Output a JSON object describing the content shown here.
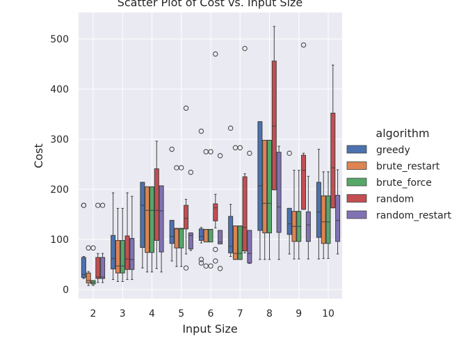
{
  "chart_data": {
    "type": "box",
    "title": "Scatter Plot of Cost vs. Input Size",
    "xlabel": "Input Size",
    "ylabel": "Cost",
    "ylim": [
      -18,
      555
    ],
    "yticks": [
      0,
      100,
      200,
      300,
      400,
      500
    ],
    "categories": [
      "2",
      "3",
      "4",
      "5",
      "6",
      "7",
      "8",
      "9",
      "10"
    ],
    "grid": true,
    "legend": {
      "title": "algorithm",
      "placement": "right"
    },
    "series": [
      {
        "name": "greedy",
        "color": "#4c72b0",
        "boxes": [
          {
            "wl": 22,
            "q1": 24,
            "med": 30,
            "q3": 64,
            "wh": 66,
            "fliers": [
              168,
              168
            ]
          },
          {
            "wl": 20,
            "q1": 41,
            "med": 62,
            "q3": 108,
            "wh": 193,
            "fliers": []
          },
          {
            "wl": 43,
            "q1": 84,
            "med": 168,
            "q3": 214,
            "wh": 214,
            "fliers": []
          },
          {
            "wl": 57,
            "q1": 92,
            "med": 106,
            "q3": 138,
            "wh": 138,
            "fliers": [
              280
            ]
          },
          {
            "wl": 93,
            "q1": 98,
            "med": 106,
            "q3": 121,
            "wh": 124,
            "fliers": [
              60,
              53,
              316
            ]
          },
          {
            "wl": 66,
            "q1": 73,
            "med": 86,
            "q3": 146,
            "wh": 170,
            "fliers": [
              322
            ]
          },
          {
            "wl": 60,
            "q1": 118,
            "med": 207,
            "q3": 335,
            "wh": 335,
            "fliers": []
          },
          {
            "wl": 71,
            "q1": 110,
            "med": 131,
            "q3": 162,
            "wh": 162,
            "fliers": [
              272
            ]
          },
          {
            "wl": 61,
            "q1": 104,
            "med": 155,
            "q3": 214,
            "wh": 280,
            "fliers": []
          }
        ]
      },
      {
        "name": "brute_restart",
        "color": "#dd8452",
        "boxes": [
          {
            "wl": 8,
            "q1": 13,
            "med": 18,
            "q3": 33,
            "wh": 36,
            "fliers": [
              83
            ]
          },
          {
            "wl": 16,
            "q1": 33,
            "med": 47,
            "q3": 98,
            "wh": 162,
            "fliers": []
          },
          {
            "wl": 35,
            "q1": 74,
            "med": 158,
            "q3": 205,
            "wh": 205,
            "fliers": []
          },
          {
            "wl": 46,
            "q1": 83,
            "med": 121,
            "q3": 122,
            "wh": 122,
            "fliers": [
              243
            ]
          },
          {
            "wl": 95,
            "q1": 95,
            "med": 120,
            "q3": 120,
            "wh": 120,
            "fliers": [
              47,
              275
            ]
          },
          {
            "wl": 60,
            "q1": 60,
            "med": 72,
            "q3": 127,
            "wh": 127,
            "fliers": [
              283
            ]
          },
          {
            "wl": 60,
            "q1": 113,
            "med": 172,
            "q3": 298,
            "wh": 298,
            "fliers": []
          },
          {
            "wl": 61,
            "q1": 96,
            "med": 126,
            "q3": 156,
            "wh": 238,
            "fliers": []
          },
          {
            "wl": 62,
            "q1": 92,
            "med": 135,
            "q3": 187,
            "wh": 235,
            "fliers": []
          }
        ]
      },
      {
        "name": "brute_force",
        "color": "#55a868",
        "boxes": [
          {
            "wl": 8,
            "q1": 11,
            "med": 14,
            "q3": 18,
            "wh": 18,
            "fliers": [
              83
            ]
          },
          {
            "wl": 16,
            "q1": 33,
            "med": 47,
            "q3": 98,
            "wh": 162,
            "fliers": []
          },
          {
            "wl": 35,
            "q1": 74,
            "med": 158,
            "q3": 205,
            "wh": 205,
            "fliers": []
          },
          {
            "wl": 46,
            "q1": 83,
            "med": 121,
            "q3": 122,
            "wh": 122,
            "fliers": [
              243
            ]
          },
          {
            "wl": 95,
            "q1": 95,
            "med": 120,
            "q3": 120,
            "wh": 120,
            "fliers": [
              47,
              275
            ]
          },
          {
            "wl": 60,
            "q1": 60,
            "med": 72,
            "q3": 127,
            "wh": 127,
            "fliers": [
              283
            ]
          },
          {
            "wl": 60,
            "q1": 113,
            "med": 172,
            "q3": 298,
            "wh": 298,
            "fliers": []
          },
          {
            "wl": 61,
            "q1": 96,
            "med": 126,
            "q3": 156,
            "wh": 238,
            "fliers": []
          },
          {
            "wl": 62,
            "q1": 92,
            "med": 135,
            "q3": 187,
            "wh": 235,
            "fliers": []
          }
        ]
      },
      {
        "name": "random",
        "color": "#c44e52",
        "boxes": [
          {
            "wl": 14,
            "q1": 22,
            "med": 25,
            "q3": 64,
            "wh": 72,
            "fliers": [
              168
            ]
          },
          {
            "wl": 20,
            "q1": 40,
            "med": 61,
            "q3": 107,
            "wh": 193,
            "fliers": []
          },
          {
            "wl": 42,
            "q1": 98,
            "med": 158,
            "q3": 241,
            "wh": 296,
            "fliers": []
          },
          {
            "wl": 71,
            "q1": 121,
            "med": 142,
            "q3": 168,
            "wh": 180,
            "fliers": [
              43,
              362
            ]
          },
          {
            "wl": 123,
            "q1": 137,
            "med": 163,
            "q3": 171,
            "wh": 190,
            "fliers": [
              80,
              57,
              470
            ]
          },
          {
            "wl": 73,
            "q1": 77,
            "med": 124,
            "q3": 225,
            "wh": 231,
            "fliers": [
              481
            ]
          },
          {
            "wl": 199,
            "q1": 199,
            "med": 326,
            "q3": 456,
            "wh": 525,
            "fliers": []
          },
          {
            "wl": 160,
            "q1": 160,
            "med": 238,
            "q3": 268,
            "wh": 272,
            "fliers": [
              488
            ]
          },
          {
            "wl": 163,
            "q1": 163,
            "med": 243,
            "q3": 352,
            "wh": 448,
            "fliers": []
          }
        ]
      },
      {
        "name": "random_restart",
        "color": "#8172b3",
        "boxes": [
          {
            "wl": 14,
            "q1": 22,
            "med": 25,
            "q3": 64,
            "wh": 72,
            "fliers": [
              168
            ]
          },
          {
            "wl": 20,
            "q1": 40,
            "med": 60,
            "q3": 102,
            "wh": 186,
            "fliers": []
          },
          {
            "wl": 35,
            "q1": 75,
            "med": 157,
            "q3": 207,
            "wh": 207,
            "fliers": []
          },
          {
            "wl": 78,
            "q1": 81,
            "med": 108,
            "q3": 113,
            "wh": 113,
            "fliers": [
              234
            ]
          },
          {
            "wl": 91,
            "q1": 91,
            "med": 95,
            "q3": 118,
            "wh": 118,
            "fliers": [
              42,
              267
            ]
          },
          {
            "wl": 52,
            "q1": 53,
            "med": 72,
            "q3": 118,
            "wh": 118,
            "fliers": [
              272
            ]
          },
          {
            "wl": 60,
            "q1": 114,
            "med": 165,
            "q3": 274,
            "wh": 286,
            "fliers": []
          },
          {
            "wl": 61,
            "q1": 96,
            "med": 129,
            "q3": 155,
            "wh": 226,
            "fliers": []
          },
          {
            "wl": 71,
            "q1": 96,
            "med": 138,
            "q3": 188,
            "wh": 239,
            "fliers": []
          }
        ]
      }
    ]
  }
}
